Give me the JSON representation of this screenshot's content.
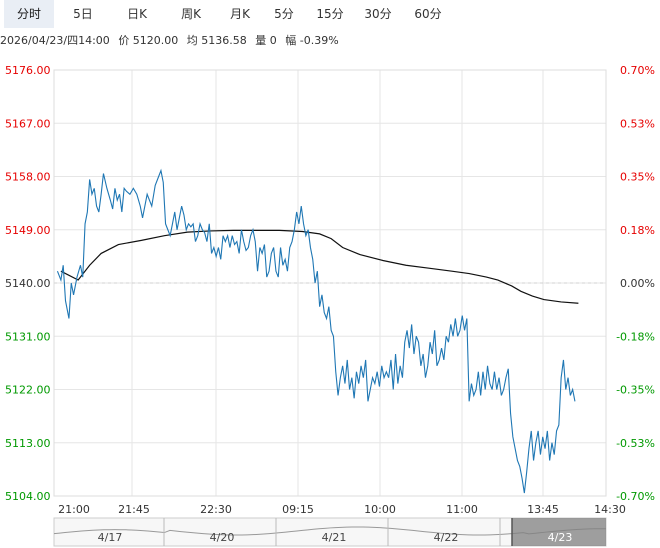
{
  "tabs": [
    {
      "label": "分时",
      "active": true
    },
    {
      "label": "5日",
      "active": false
    },
    {
      "label": "日K",
      "active": false
    },
    {
      "label": "周K",
      "active": false
    },
    {
      "label": "月K",
      "active": false
    },
    {
      "label": "5分",
      "active": false
    },
    {
      "label": "15分",
      "active": false
    },
    {
      "label": "30分",
      "active": false
    },
    {
      "label": "60分",
      "active": false
    }
  ],
  "info": {
    "datetime": "2026/04/23/四14:00",
    "price": "价 5120.00",
    "avg": "均 5136.58",
    "volume": "量 0",
    "change": "幅 -0.39%"
  },
  "colors": {
    "up": "#e60000",
    "down": "#009900",
    "neutral": "#333333",
    "price_line": "#1f77b4",
    "avg_line": "#111111",
    "grid": "#e6e6e6"
  },
  "chart_data": {
    "type": "line",
    "ylim": [
      5104.0,
      5176.0
    ],
    "y_ticks": [
      "5176.00",
      "5167.00",
      "5158.00",
      "5149.00",
      "5140.00",
      "5131.00",
      "5122.00",
      "5113.00",
      "5104.00"
    ],
    "pct_ticks": [
      "0.70%",
      "0.53%",
      "0.35%",
      "0.18%",
      "0.00%",
      "-0.18%",
      "-0.35%",
      "-0.53%",
      "-0.70%"
    ],
    "x_ticks": [
      "21:00",
      "21:45",
      "22:30",
      "09:15",
      "10:00",
      "11:00",
      "13:45",
      "14:30"
    ],
    "x_count": 300,
    "price_series": [
      [
        0,
        5142.0
      ],
      [
        3,
        5140.5
      ],
      [
        5,
        5143.0
      ],
      [
        7,
        5137.0
      ],
      [
        10,
        5134.0
      ],
      [
        12,
        5140.0
      ],
      [
        14,
        5138.0
      ],
      [
        17,
        5141.0
      ],
      [
        20,
        5143.0
      ],
      [
        22,
        5141.0
      ],
      [
        24,
        5150.0
      ],
      [
        26,
        5152.0
      ],
      [
        28,
        5157.5
      ],
      [
        30,
        5155.0
      ],
      [
        32,
        5156.0
      ],
      [
        34,
        5153.0
      ],
      [
        36,
        5152.0
      ],
      [
        38,
        5155.0
      ],
      [
        40,
        5158.5
      ],
      [
        43,
        5156.0
      ],
      [
        46,
        5154.0
      ],
      [
        48,
        5152.5
      ],
      [
        50,
        5156.0
      ],
      [
        52,
        5154.0
      ],
      [
        54,
        5155.0
      ],
      [
        56,
        5152.0
      ],
      [
        58,
        5156.0
      ],
      [
        60,
        5155.5
      ],
      [
        63,
        5155.0
      ],
      [
        66,
        5156.0
      ],
      [
        69,
        5155.0
      ],
      [
        72,
        5153.0
      ],
      [
        74,
        5151.0
      ],
      [
        76,
        5153.0
      ],
      [
        78,
        5155.0
      ],
      [
        80,
        5154.0
      ],
      [
        82,
        5153.0
      ],
      [
        85,
        5156.5
      ],
      [
        88,
        5158.0
      ],
      [
        90,
        5159.0
      ],
      [
        92,
        5157.0
      ],
      [
        94,
        5150.0
      ],
      [
        96,
        5149.0
      ],
      [
        98,
        5148.0
      ],
      [
        100,
        5150.0
      ],
      [
        102,
        5152.0
      ],
      [
        104,
        5149.0
      ],
      [
        106,
        5151.0
      ],
      [
        108,
        5153.0
      ],
      [
        110,
        5151.5
      ],
      [
        112,
        5149.0
      ],
      [
        114,
        5150.0
      ],
      [
        116,
        5149.5
      ],
      [
        118,
        5150.0
      ],
      [
        120,
        5147.0
      ],
      [
        122,
        5148.0
      ],
      [
        124,
        5150.0
      ],
      [
        126,
        5149.0
      ],
      [
        128,
        5148.5
      ],
      [
        130,
        5147.0
      ],
      [
        132,
        5150.0
      ],
      [
        134,
        5145.0
      ],
      [
        136,
        5146.0
      ],
      [
        138,
        5144.5
      ],
      [
        140,
        5146.0
      ],
      [
        142,
        5144.0
      ],
      [
        144,
        5148.0
      ],
      [
        146,
        5147.0
      ],
      [
        148,
        5148.0
      ],
      [
        150,
        5146.0
      ],
      [
        152,
        5148.0
      ],
      [
        154,
        5146.5
      ],
      [
        156,
        5147.0
      ],
      [
        158,
        5145.0
      ],
      [
        160,
        5149.0
      ],
      [
        162,
        5147.0
      ],
      [
        164,
        5145.5
      ],
      [
        166,
        5146.0
      ],
      [
        168,
        5148.0
      ],
      [
        170,
        5149.0
      ],
      [
        172,
        5147.0
      ],
      [
        174,
        5142.0
      ],
      [
        176,
        5146.0
      ],
      [
        178,
        5145.0
      ],
      [
        180,
        5146.5
      ],
      [
        182,
        5141.0
      ],
      [
        184,
        5142.0
      ],
      [
        186,
        5145.0
      ],
      [
        188,
        5146.0
      ],
      [
        190,
        5142.0
      ],
      [
        192,
        5141.0
      ],
      [
        194,
        5146.0
      ],
      [
        196,
        5143.0
      ],
      [
        198,
        5144.0
      ],
      [
        200,
        5142.0
      ],
      [
        202,
        5146.0
      ],
      [
        204,
        5147.0
      ],
      [
        206,
        5149.0
      ],
      [
        208,
        5152.0
      ],
      [
        210,
        5150.0
      ],
      [
        212,
        5153.0
      ],
      [
        214,
        5150.0
      ],
      [
        216,
        5148.0
      ],
      [
        218,
        5149.0
      ],
      [
        220,
        5146.0
      ],
      [
        222,
        5144.0
      ],
      [
        224,
        5140.0
      ],
      [
        226,
        5142.0
      ],
      [
        228,
        5136.0
      ],
      [
        230,
        5138.0
      ],
      [
        232,
        5135.0
      ],
      [
        234,
        5134.0
      ],
      [
        236,
        5136.0
      ],
      [
        238,
        5132.0
      ],
      [
        240,
        5131.0
      ],
      [
        242,
        5125.0
      ],
      [
        244,
        5121.0
      ],
      [
        246,
        5124.0
      ],
      [
        248,
        5126.0
      ],
      [
        250,
        5123.0
      ],
      [
        252,
        5127.0
      ],
      [
        254,
        5122.0
      ],
      [
        256,
        5124.0
      ],
      [
        258,
        5120.5
      ],
      [
        260,
        5125.0
      ],
      [
        262,
        5123.0
      ],
      [
        264,
        5126.0
      ],
      [
        266,
        5124.0
      ],
      [
        268,
        5127.0
      ],
      [
        270,
        5120.0
      ],
      [
        272,
        5122.0
      ],
      [
        274,
        5124.0
      ],
      [
        276,
        5123.0
      ],
      [
        278,
        5125.0
      ],
      [
        280,
        5122.5
      ],
      [
        282,
        5126.0
      ],
      [
        284,
        5124.0
      ],
      [
        286,
        5125.0
      ],
      [
        288,
        5124.0
      ],
      [
        290,
        5127.0
      ],
      [
        292,
        5122.0
      ],
      [
        294,
        5128.0
      ],
      [
        296,
        5123.0
      ],
      [
        298,
        5126.0
      ],
      [
        300,
        5124.0
      ],
      [
        302,
        5130.0
      ],
      [
        304,
        5132.0
      ],
      [
        306,
        5129.0
      ],
      [
        308,
        5133.0
      ],
      [
        310,
        5128.0
      ],
      [
        312,
        5131.0
      ],
      [
        314,
        5130.0
      ],
      [
        316,
        5126.0
      ],
      [
        318,
        5128.0
      ],
      [
        320,
        5124.0
      ],
      [
        322,
        5126.0
      ],
      [
        324,
        5130.0
      ],
      [
        326,
        5128.0
      ],
      [
        328,
        5132.0
      ],
      [
        330,
        5126.0
      ],
      [
        332,
        5127.0
      ],
      [
        334,
        5129.0
      ],
      [
        336,
        5127.0
      ],
      [
        338,
        5131.0
      ],
      [
        340,
        5130.0
      ],
      [
        342,
        5133.0
      ],
      [
        344,
        5131.0
      ],
      [
        346,
        5134.0
      ],
      [
        348,
        5131.0
      ],
      [
        350,
        5132.0
      ],
      [
        352,
        5134.5
      ],
      [
        354,
        5132.0
      ],
      [
        356,
        5134.0
      ],
      [
        358,
        5120.0
      ],
      [
        360,
        5123.0
      ],
      [
        362,
        5121.0
      ],
      [
        364,
        5122.0
      ],
      [
        366,
        5125.0
      ],
      [
        368,
        5121.0
      ],
      [
        370,
        5125.0
      ],
      [
        372,
        5122.0
      ],
      [
        374,
        5126.0
      ],
      [
        376,
        5123.0
      ],
      [
        378,
        5122.0
      ],
      [
        380,
        5125.0
      ],
      [
        382,
        5122.0
      ],
      [
        384,
        5124.0
      ],
      [
        386,
        5121.0
      ],
      [
        388,
        5122.0
      ],
      [
        390,
        5124.0
      ],
      [
        392,
        5125.5
      ],
      [
        394,
        5118.0
      ],
      [
        396,
        5114.0
      ],
      [
        398,
        5112.0
      ],
      [
        400,
        5110.0
      ],
      [
        402,
        5109.0
      ],
      [
        404,
        5107.0
      ],
      [
        406,
        5104.5
      ],
      [
        408,
        5108.0
      ],
      [
        410,
        5112.0
      ],
      [
        412,
        5115.0
      ],
      [
        414,
        5110.0
      ],
      [
        416,
        5113.0
      ],
      [
        418,
        5115.0
      ],
      [
        420,
        5111.0
      ],
      [
        422,
        5114.0
      ],
      [
        424,
        5112.0
      ],
      [
        426,
        5115.0
      ],
      [
        428,
        5110.0
      ],
      [
        430,
        5113.0
      ],
      [
        432,
        5111.0
      ],
      [
        434,
        5115.0
      ],
      [
        436,
        5116.0
      ],
      [
        438,
        5124.0
      ],
      [
        440,
        5127.0
      ],
      [
        442,
        5122.0
      ],
      [
        444,
        5124.0
      ],
      [
        446,
        5121.0
      ],
      [
        448,
        5122.0
      ],
      [
        450,
        5120.0
      ]
    ],
    "avg_series": [
      [
        0,
        5142.0
      ],
      [
        15,
        5140.5
      ],
      [
        25,
        5143.0
      ],
      [
        35,
        5145.0
      ],
      [
        50,
        5146.5
      ],
      [
        70,
        5147.2
      ],
      [
        90,
        5148.0
      ],
      [
        110,
        5148.6
      ],
      [
        130,
        5148.8
      ],
      [
        150,
        5148.9
      ],
      [
        170,
        5148.9
      ],
      [
        190,
        5148.9
      ],
      [
        210,
        5148.7
      ],
      [
        225,
        5148.3
      ],
      [
        235,
        5147.5
      ],
      [
        245,
        5146.0
      ],
      [
        260,
        5144.8
      ],
      [
        280,
        5143.8
      ],
      [
        300,
        5143.0
      ],
      [
        320,
        5142.5
      ],
      [
        340,
        5142.0
      ],
      [
        355,
        5141.6
      ],
      [
        370,
        5141.0
      ],
      [
        380,
        5140.5
      ],
      [
        392,
        5139.5
      ],
      [
        400,
        5138.6
      ],
      [
        410,
        5137.8
      ],
      [
        420,
        5137.2
      ],
      [
        435,
        5136.8
      ],
      [
        450,
        5136.58
      ]
    ],
    "base_price": 5140.0
  },
  "navigator": {
    "labels": [
      "4/17",
      "4/20",
      "4/21",
      "4/22",
      "4/23"
    ]
  }
}
